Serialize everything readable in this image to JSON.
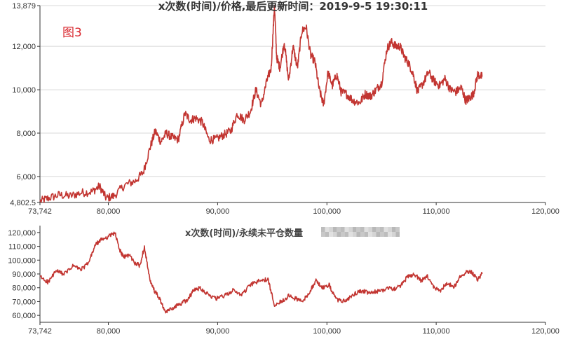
{
  "chart_data": [
    {
      "type": "line",
      "title": "x次数(时间)/价格,最后更新时间：2019-9-5 19:30:11",
      "annotation": "图3",
      "xlim": [
        73742,
        120000
      ],
      "ylim": [
        4802.5,
        13879
      ],
      "x_ticks": [
        "73,742",
        "80,000",
        "90,000",
        "100,000",
        "110,000",
        "120,000"
      ],
      "y_ticks": [
        "4,802.5",
        "6,000",
        "8,000",
        "10,000",
        "12,000",
        "13,879"
      ],
      "grid": "horizontal",
      "series": [
        {
          "color": "#c23531",
          "x": [
            73742,
            74500,
            75500,
            76500,
            77500,
            78500,
            79200,
            79800,
            80500,
            81500,
            82500,
            83200,
            83800,
            84300,
            84800,
            85300,
            85800,
            86400,
            87000,
            87500,
            88000,
            88600,
            89200,
            89800,
            90500,
            91200,
            91800,
            92400,
            93000,
            93500,
            94000,
            94500,
            94900,
            95200,
            95400,
            95700,
            96100,
            96500,
            96900,
            97300,
            97700,
            98100,
            98500,
            98900,
            99300,
            99700,
            100100,
            100500,
            100900,
            101300,
            101800,
            102400,
            103000,
            103500,
            104000,
            104500,
            105000,
            105500,
            105900,
            106300,
            106700,
            107100,
            107500,
            107900,
            108300,
            108800,
            109300,
            109800,
            110300,
            110800,
            111300,
            111800,
            112300,
            112700,
            113000,
            113400,
            113800,
            114200
          ],
          "values": [
            4850,
            5000,
            5150,
            5100,
            5250,
            5300,
            5550,
            5000,
            5100,
            5600,
            5800,
            6200,
            7300,
            8100,
            7600,
            8000,
            7800,
            7700,
            8900,
            8600,
            8700,
            8500,
            7700,
            7700,
            7900,
            8100,
            8900,
            8600,
            9000,
            10000,
            9300,
            10400,
            11000,
            13879,
            11500,
            11000,
            12200,
            10400,
            12000,
            11000,
            12700,
            12900,
            11600,
            11300,
            10000,
            9300,
            10800,
            10200,
            10700,
            9900,
            9800,
            9500,
            9400,
            9800,
            9700,
            10000,
            10300,
            11900,
            12200,
            12000,
            12000,
            11500,
            11200,
            10700,
            9900,
            10300,
            10800,
            10400,
            10200,
            10500,
            10000,
            9900,
            10100,
            9500,
            9600,
            9800,
            10700,
            10600
          ]
        }
      ]
    },
    {
      "type": "line",
      "title": "x次数(时间)/永续未平仓数量",
      "xlim": [
        73742,
        120000
      ],
      "ylim": [
        55000,
        125000
      ],
      "x_ticks": [
        "73,742",
        "80,000",
        "90,000",
        "100,000",
        "110,000",
        "120,000"
      ],
      "y_ticks": [
        "60,000",
        "70,000",
        "80,000",
        "90,000",
        "100,000",
        "110,000",
        "120,000"
      ],
      "grid": "none",
      "series": [
        {
          "color": "#c23531",
          "x": [
            73742,
            74500,
            75200,
            76000,
            76800,
            77500,
            78200,
            78800,
            79400,
            80000,
            80600,
            81000,
            81400,
            81900,
            82400,
            82900,
            83300,
            83800,
            84200,
            84700,
            85200,
            85800,
            86500,
            87200,
            87800,
            88400,
            89000,
            89800,
            90600,
            91400,
            92200,
            93000,
            93800,
            94600,
            95200,
            95800,
            96500,
            97200,
            97800,
            98400,
            99000,
            99600,
            100200,
            100800,
            101400,
            102000,
            102600,
            103200,
            103800,
            104400,
            105000,
            105600,
            106200,
            106800,
            107400,
            108000,
            108600,
            109200,
            109800,
            110400,
            111000,
            111600,
            112200,
            112800,
            113300,
            113800,
            114200
          ],
          "values": [
            88000,
            84000,
            92000,
            90000,
            96000,
            93000,
            98000,
            111000,
            115000,
            117000,
            120000,
            108000,
            102000,
            104000,
            98000,
            96000,
            110000,
            85000,
            78000,
            72000,
            62000,
            65000,
            68000,
            71000,
            78000,
            80000,
            76000,
            72000,
            74000,
            78000,
            75000,
            82000,
            85000,
            86000,
            68000,
            70000,
            74000,
            72000,
            70000,
            77000,
            85000,
            80000,
            82000,
            72000,
            70000,
            72000,
            76000,
            78000,
            76000,
            77000,
            78000,
            80000,
            79000,
            82000,
            88000,
            90000,
            85000,
            88000,
            80000,
            78000,
            84000,
            80000,
            88000,
            92000,
            91000,
            86000,
            90000
          ]
        }
      ]
    }
  ]
}
